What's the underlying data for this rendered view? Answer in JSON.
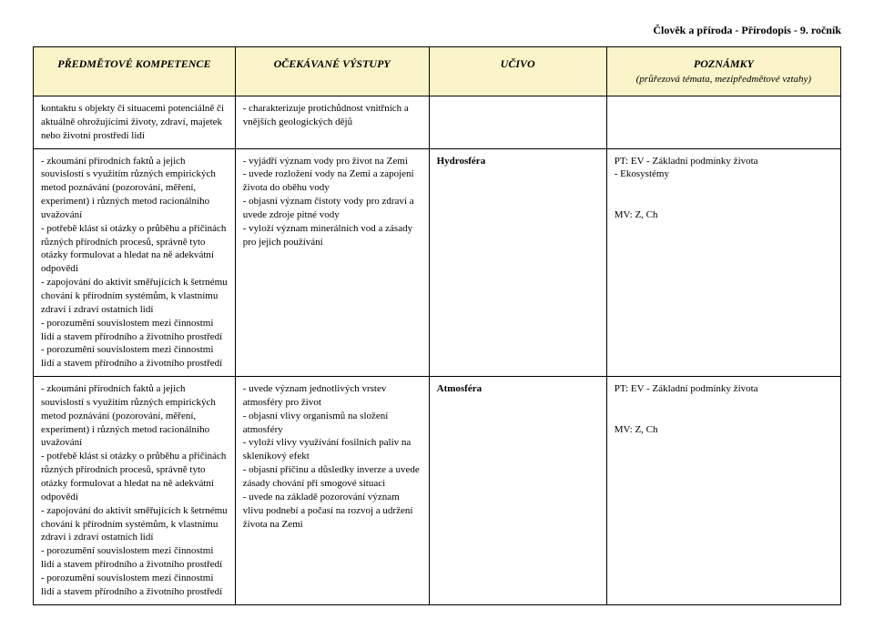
{
  "page_title": "Člověk a příroda - Přírodopis - 9. ročník",
  "headers": {
    "col1": "PŘEDMĚTOVÉ KOMPETENCE",
    "col2": "OČEKÁVANÉ VÝSTUPY",
    "col3": "UČIVO",
    "col4_top": "POZNÁMKY",
    "col4_sub": "(průřezová témata, mezipředmětové vztahy)"
  },
  "rows": [
    {
      "c1": "kontaktu s objekty či situacemi potenciálně či aktuálně ohrožujícími životy, zdraví, majetek nebo životní prostředí lidí",
      "c2": "- charakterizuje protichůdnost vnitřních a vnějších geologických dějů",
      "c3": "",
      "c4": ""
    },
    {
      "c1": "- zkoumání přírodních faktů a jejich souvislostí s využitím různých empirických metod poznávání (pozorování, měření, experiment) i různých metod racionálního uvažování\n- potřebě klást si otázky o průběhu a příčinách různých přírodních procesů, správně tyto otázky formulovat a hledat na ně adekvátní odpovědi\n- zapojování do aktivit směřujících k šetrnému chování k přírodním systémům, k vlastnímu zdraví i zdraví ostatních lidí\n- porozumění souvislostem mezi činnostmi lidí a stavem přírodního a životního prostředí\n- porozumění souvislostem mezi činnostmi lidí a stavem přírodního a životního prostředí",
      "c2": "- vyjádří význam vody pro život na Zemi\n- uvede rozložení vody na Zemi a zapojení života do oběhu vody\n- objasní význam čistoty vody pro zdraví a uvede zdroje pitné vody\n- vyloží význam minerálních vod a zásady pro jejich používání",
      "c3": "Hydrosféra",
      "c4": "PT: EV -  Základní podmínky života\n- Ekosystémy\n\nMV: Z, Ch"
    },
    {
      "c1": "- zkoumání přírodních faktů a jejich souvislostí s využitím různých empirických metod poznávání (pozorování, měření, experiment) i různých metod racionálního uvažování\n- potřebě klást si otázky o průběhu a příčinách různých přírodních procesů, správně tyto otázky formulovat a hledat na ně adekvátní odpovědi\n- zapojování do aktivit směřujících k šetrnému chování k přírodním systémům, k vlastnímu zdraví i zdraví ostatních lidí\n- porozumění souvislostem mezi činnostmi lidí a stavem přírodního a životního prostředí\n- porozumění souvislostem mezi činnostmi lidí a stavem přírodního a životního prostředí",
      "c2": "- uvede význam jednotlivých vrstev atmosféry pro život\n- objasní vlivy organismů na složení atmosféry\n- vyloží vlivy využívání fosilních paliv na skleníkový efekt\n- objasní příčinu a důsledky inverze a uvede zásady chování při smogové situaci\n- uvede na základě pozorování význam vlivu podnebí a počasí na rozvoj a udržení života na Zemi",
      "c3": "Atmosféra",
      "c4": "PT: EV -  Základní podmínky života\n\nMV: Z, Ch"
    }
  ]
}
